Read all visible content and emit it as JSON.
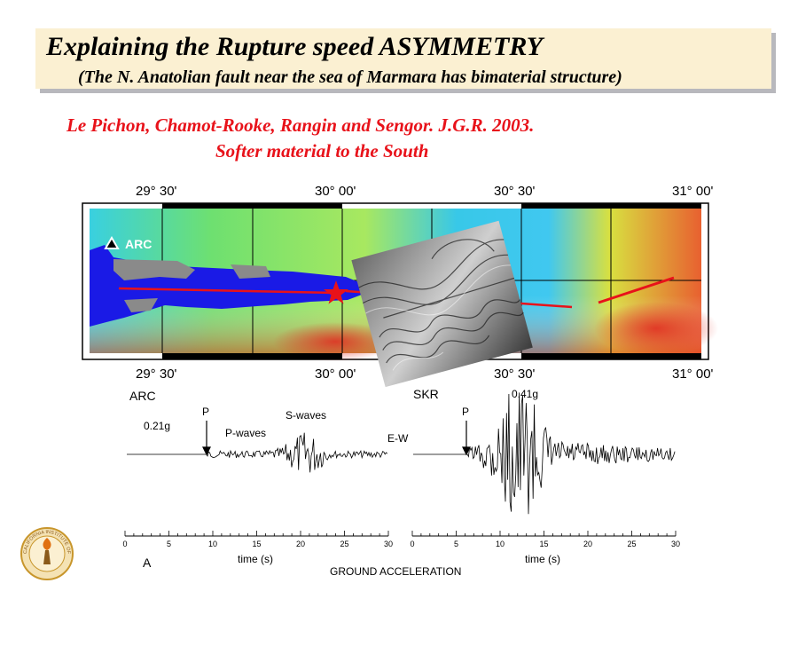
{
  "slide": {
    "title": "Explaining the Rupture speed ASYMMETRY",
    "subtitle": "(The N. Anatolian fault near the sea of Marmara has bimaterial  structure)",
    "reference_line1": "Le Pichon, Chamot-Rooke, Rangin and Sengor. J.G.R. 2003.",
    "reference_line2": "Softer material to the South"
  },
  "map": {
    "lon_labels": [
      "29° 30'",
      "30° 00'",
      "30° 30'",
      "31° 00'"
    ],
    "station_label": "ARC"
  },
  "seismograms": {
    "left": {
      "station": "ARC",
      "amplitude": "0.21g",
      "p_label": "P",
      "p_waves": "P-waves",
      "s_waves": "S-waves",
      "component": "E-W"
    },
    "right": {
      "station": "SKR",
      "amplitude": "0.41g",
      "p_label": "P"
    },
    "ticks": [
      "0",
      "5",
      "10",
      "15",
      "20",
      "25",
      "30"
    ],
    "xlabel": "time (s)",
    "panel_label": "A",
    "caption": "GROUND ACCELERATION"
  },
  "colors": {
    "title_bg": "#fbf0d2",
    "reference_text": "#e8121a",
    "fault_line": "#e8121a",
    "sea": "#1a1ae6"
  },
  "logo_text": "CALIFORNIA INSTITUTE OF TECHNOLOGY"
}
